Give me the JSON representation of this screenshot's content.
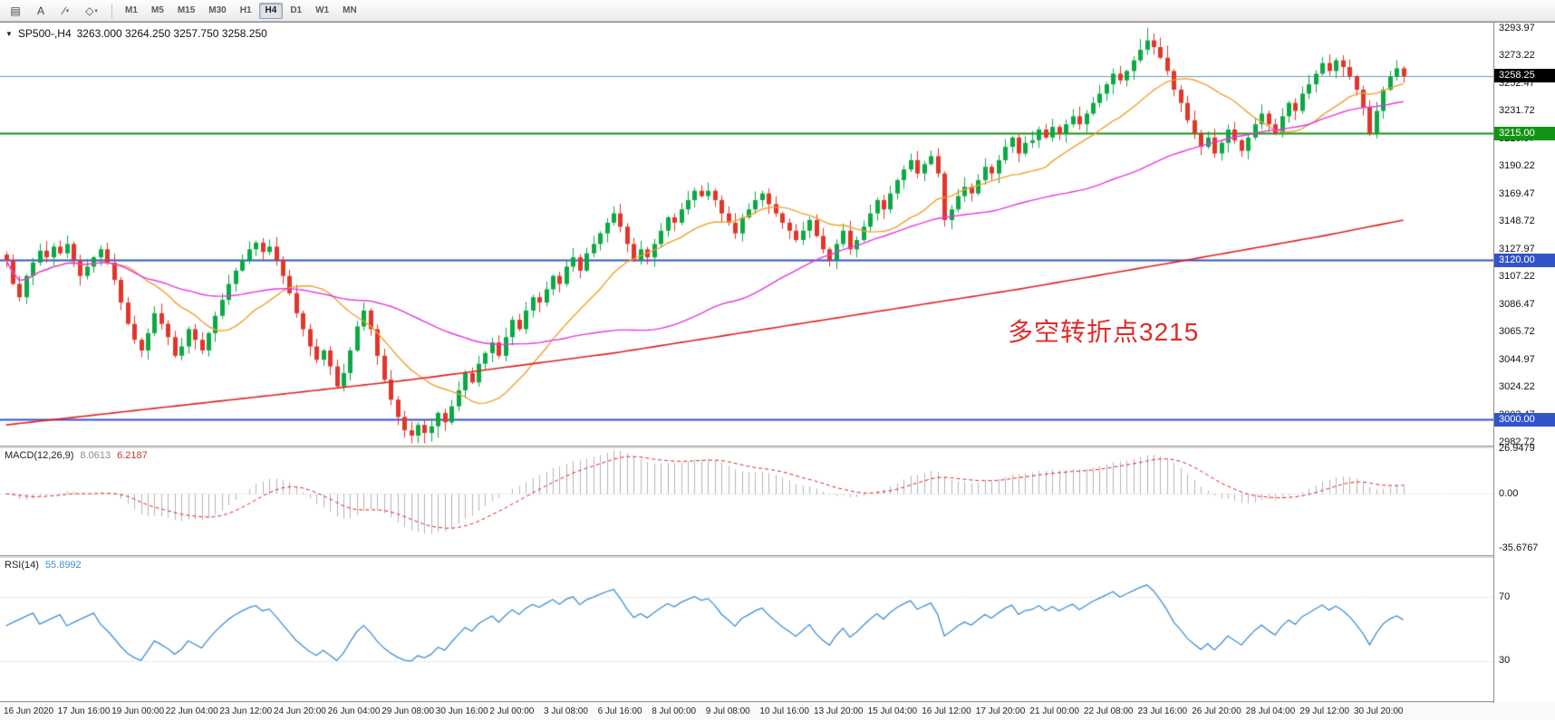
{
  "toolbar": {
    "tools": [
      {
        "name": "chart-list",
        "glyph": "▤",
        "caret": false
      },
      {
        "name": "text-label",
        "glyph": "A",
        "caret": false
      },
      {
        "name": "trendline-tool",
        "glyph": "∕",
        "caret": true
      },
      {
        "name": "shapes-tool",
        "glyph": "◇",
        "caret": true
      }
    ],
    "timeframes": [
      "M1",
      "M5",
      "M15",
      "M30",
      "H1",
      "H4",
      "D1",
      "W1",
      "MN"
    ],
    "active_timeframe": "H4"
  },
  "chart": {
    "symbol_title": "SP500-,H4",
    "ohlc_text": "3263.000 3264.250 3257.750 3258.250",
    "dropdown_glyph": "▼",
    "annotation": {
      "text": "多空转折点3215",
      "color": "#e12a2a"
    },
    "chart_data": {
      "type": "candlestick",
      "symbol": "SP500-",
      "timeframe": "H4",
      "current_bar": {
        "open": 3263.0,
        "high": 3264.25,
        "low": 3257.75,
        "close": 3258.25
      },
      "ylim": [
        2980.5,
        3297
      ],
      "price_axis_labels": [
        "3293.97",
        "3273.22",
        "3252.47",
        "3231.72",
        "3210.97",
        "3190.22",
        "3169.47",
        "3148.72",
        "3127.97",
        "3107.22",
        "3086.47",
        "3065.72",
        "3044.97",
        "3024.22",
        "3003.47",
        "2982.72"
      ],
      "open_first": 3124,
      "closes": [
        3120,
        3102,
        3092,
        3108,
        3118,
        3127,
        3122,
        3130,
        3125,
        3132,
        3120,
        3108,
        3115,
        3122,
        3128,
        3118,
        3105,
        3088,
        3072,
        3060,
        3052,
        3065,
        3080,
        3072,
        3062,
        3048,
        3055,
        3068,
        3060,
        3052,
        3065,
        3078,
        3090,
        3102,
        3112,
        3120,
        3128,
        3133,
        3126,
        3130,
        3120,
        3108,
        3095,
        3080,
        3068,
        3055,
        3045,
        3052,
        3040,
        3025,
        3035,
        3052,
        3070,
        3082,
        3068,
        3048,
        3030,
        3015,
        3002,
        2992,
        2988,
        2996,
        2990,
        2995,
        3005,
        2998,
        3010,
        3022,
        3035,
        3028,
        3042,
        3050,
        3058,
        3048,
        3062,
        3075,
        3068,
        3082,
        3092,
        3088,
        3098,
        3108,
        3102,
        3115,
        3122,
        3112,
        3125,
        3132,
        3140,
        3148,
        3155,
        3145,
        3132,
        3120,
        3128,
        3122,
        3132,
        3142,
        3152,
        3148,
        3158,
        3165,
        3172,
        3168,
        3172,
        3165,
        3155,
        3148,
        3140,
        3152,
        3158,
        3165,
        3170,
        3162,
        3155,
        3148,
        3142,
        3135,
        3142,
        3150,
        3138,
        3128,
        3120,
        3132,
        3142,
        3128,
        3135,
        3145,
        3155,
        3165,
        3158,
        3170,
        3180,
        3188,
        3195,
        3185,
        3192,
        3198,
        3185,
        3150,
        3158,
        3168,
        3175,
        3170,
        3180,
        3190,
        3185,
        3195,
        3205,
        3212,
        3200,
        3208,
        3210,
        3218,
        3212,
        3220,
        3215,
        3222,
        3228,
        3222,
        3230,
        3238,
        3245,
        3252,
        3260,
        3255,
        3262,
        3270,
        3278,
        3285,
        3280,
        3272,
        3262,
        3248,
        3238,
        3225,
        3215,
        3205,
        3212,
        3200,
        3208,
        3218,
        3210,
        3202,
        3212,
        3222,
        3230,
        3222,
        3215,
        3228,
        3238,
        3232,
        3245,
        3252,
        3260,
        3268,
        3262,
        3270,
        3265,
        3258,
        3248,
        3235,
        3215,
        3232,
        3248,
        3258,
        3264,
        3258.25
      ],
      "bars_per_time_label": 8,
      "candle_up_color": "#0ca944",
      "candle_down_color": "#e2362b",
      "horizontal_lines": [
        {
          "price": 3258.25,
          "color": "#63a0b4",
          "width": 1,
          "label": "3258.25",
          "label_bg": "#000000"
        },
        {
          "price": 3215.0,
          "color": "#149414",
          "width": 2,
          "label": "3215.00",
          "label_bg": "#149414"
        },
        {
          "price": 3120.0,
          "color": "#3254c9",
          "width": 2,
          "label": "3120.00",
          "label_bg": "#3254c9"
        },
        {
          "price": 3000.0,
          "color": "#3254c9",
          "width": 2,
          "label": "3000.00",
          "label_bg": "#3254c9"
        }
      ],
      "moving_averages": [
        {
          "name": "ma-fast",
          "type": "sma",
          "period": 16,
          "color": "#efa12c"
        },
        {
          "name": "ma-mid",
          "type": "sma",
          "period": 55,
          "color": "#e238e2"
        },
        {
          "name": "ma-slow",
          "type": "anchored",
          "color": "#e02020",
          "anchors": [
            [
              0,
              2996
            ],
            [
              30,
              3013
            ],
            [
              60,
              3030
            ],
            [
              90,
              3050
            ],
            [
              120,
              3074
            ],
            [
              150,
              3098
            ],
            [
              175,
              3120
            ],
            [
              195,
              3138
            ],
            [
              207,
              3150
            ]
          ]
        }
      ],
      "indicators": {
        "macd": {
          "fast": 12,
          "slow": 26,
          "signal": 9,
          "ylim": [
            -37,
            28
          ],
          "histogram_color": "#b4b4b4",
          "signal_color": "#e02020"
        },
        "rsi": {
          "period": 14,
          "ylim": [
            95,
            5
          ],
          "levels": [
            70,
            30
          ],
          "color": "#3f8fd2"
        }
      }
    }
  },
  "macd": {
    "title": "MACD(12,26,9)",
    "value_main": "8.0613",
    "value_signal": "6.2187",
    "axis_labels": [
      "26.9479",
      "0.00",
      "-35.6767"
    ]
  },
  "rsi": {
    "title": "RSI(14)",
    "value": "55.8992",
    "axis_labels": [
      "70",
      "30"
    ]
  },
  "time_axis": {
    "labels": [
      "16 Jun 2020",
      "17 Jun 16:00",
      "19 Jun 00:00",
      "22 Jun 04:00",
      "23 Jun 12:00",
      "24 Jun 20:00",
      "26 Jun 04:00",
      "29 Jun 08:00",
      "30 Jun 16:00",
      "2 Jul 00:00",
      "3 Jul 08:00",
      "6 Jul 16:00",
      "8 Jul 00:00",
      "9 Jul 08:00",
      "10 Jul 16:00",
      "13 Jul 20:00",
      "15 Jul 04:00",
      "16 Jul 12:00",
      "17 Jul 20:00",
      "21 Jul 00:00",
      "22 Jul 08:00",
      "23 Jul 16:00",
      "26 Jul 20:00",
      "28 Jul 04:00",
      "29 Jul 12:00",
      "30 Jul 20:00"
    ]
  }
}
